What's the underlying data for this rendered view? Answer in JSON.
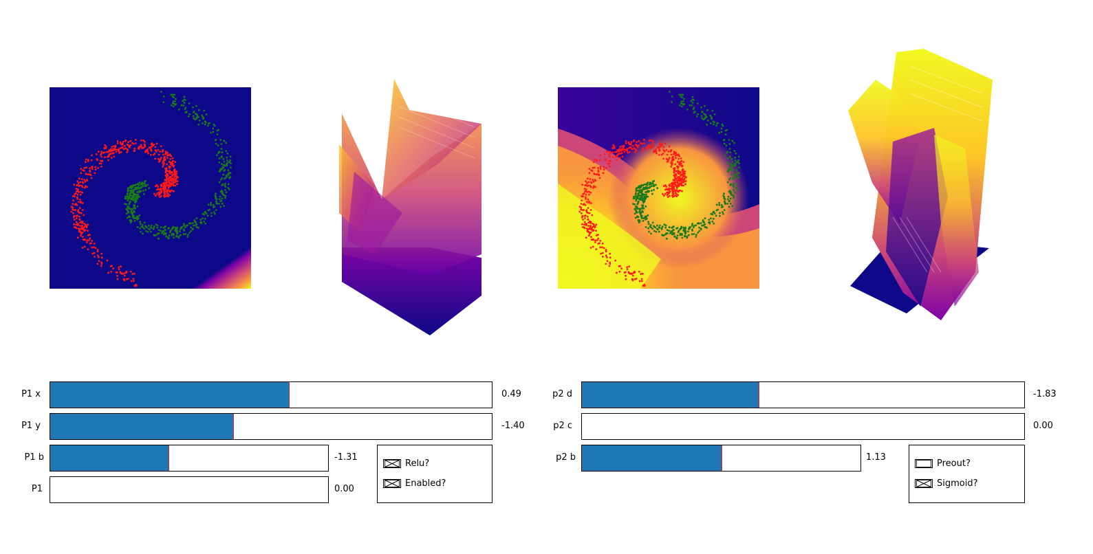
{
  "colors": {
    "background_dark": "#0d0887",
    "slider_fill": "#1f77b4",
    "slider_handle": "#d62728",
    "class_a_points": "#ff1a1a",
    "class_b_points": "#1a7a1a"
  },
  "colormap": "plasma",
  "sliders_left": [
    {
      "label": "P1 x",
      "value_text": "0.49",
      "fill_fraction": 0.54
    },
    {
      "label": "P1 y",
      "value_text": "-1.40",
      "fill_fraction": 0.413
    },
    {
      "label": "P1 b",
      "value_text": "-1.31",
      "fill_fraction": 0.423
    },
    {
      "label": "P1",
      "value_text": "0.00",
      "fill_fraction": 0.0
    }
  ],
  "sliders_right": [
    {
      "label": "p2 d",
      "value_text": "-1.83",
      "fill_fraction": 0.398
    },
    {
      "label": "p2 c",
      "value_text": "0.00",
      "fill_fraction": 0.0
    },
    {
      "label": "p2 b",
      "value_text": "1.13",
      "fill_fraction": 0.5
    }
  ],
  "checkboxes_left": [
    {
      "label": "Relu?",
      "checked": true
    },
    {
      "label": "Enabled?",
      "checked": true
    }
  ],
  "checkboxes_right": [
    {
      "label": "Preout?",
      "checked": false
    },
    {
      "label": "Sigmoid?",
      "checked": true
    }
  ]
}
